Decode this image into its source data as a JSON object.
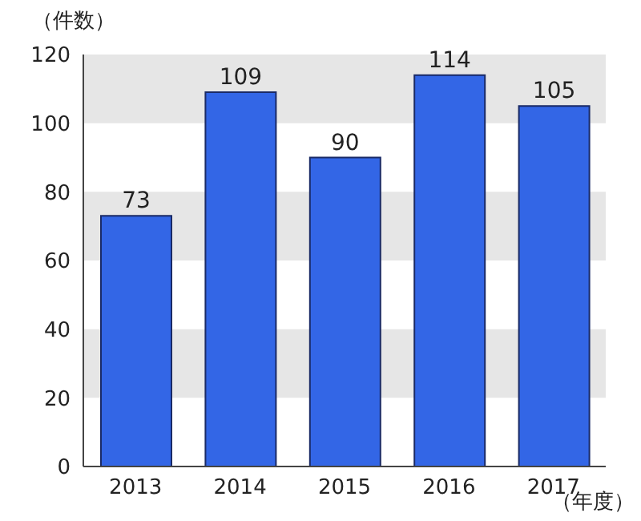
{
  "chart_data": {
    "type": "bar",
    "xlabel": "（年度）",
    "ylabel": "（件数）",
    "categories": [
      "2013",
      "2014",
      "2015",
      "2016",
      "2017"
    ],
    "values": [
      73,
      109,
      90,
      114,
      105
    ],
    "color": "#3366e6",
    "ylim": [
      0,
      120
    ],
    "yticks": [
      0,
      20,
      40,
      60,
      80,
      100,
      120
    ],
    "data_labels": true,
    "bands": [
      {
        "axis": "y",
        "from": 20,
        "to": 40,
        "color": "#e6e6e6"
      },
      {
        "axis": "y",
        "from": 60,
        "to": 80,
        "color": "#e6e6e6"
      },
      {
        "axis": "y",
        "from": 100,
        "to": 120,
        "color": "#e6e6e6"
      }
    ]
  }
}
